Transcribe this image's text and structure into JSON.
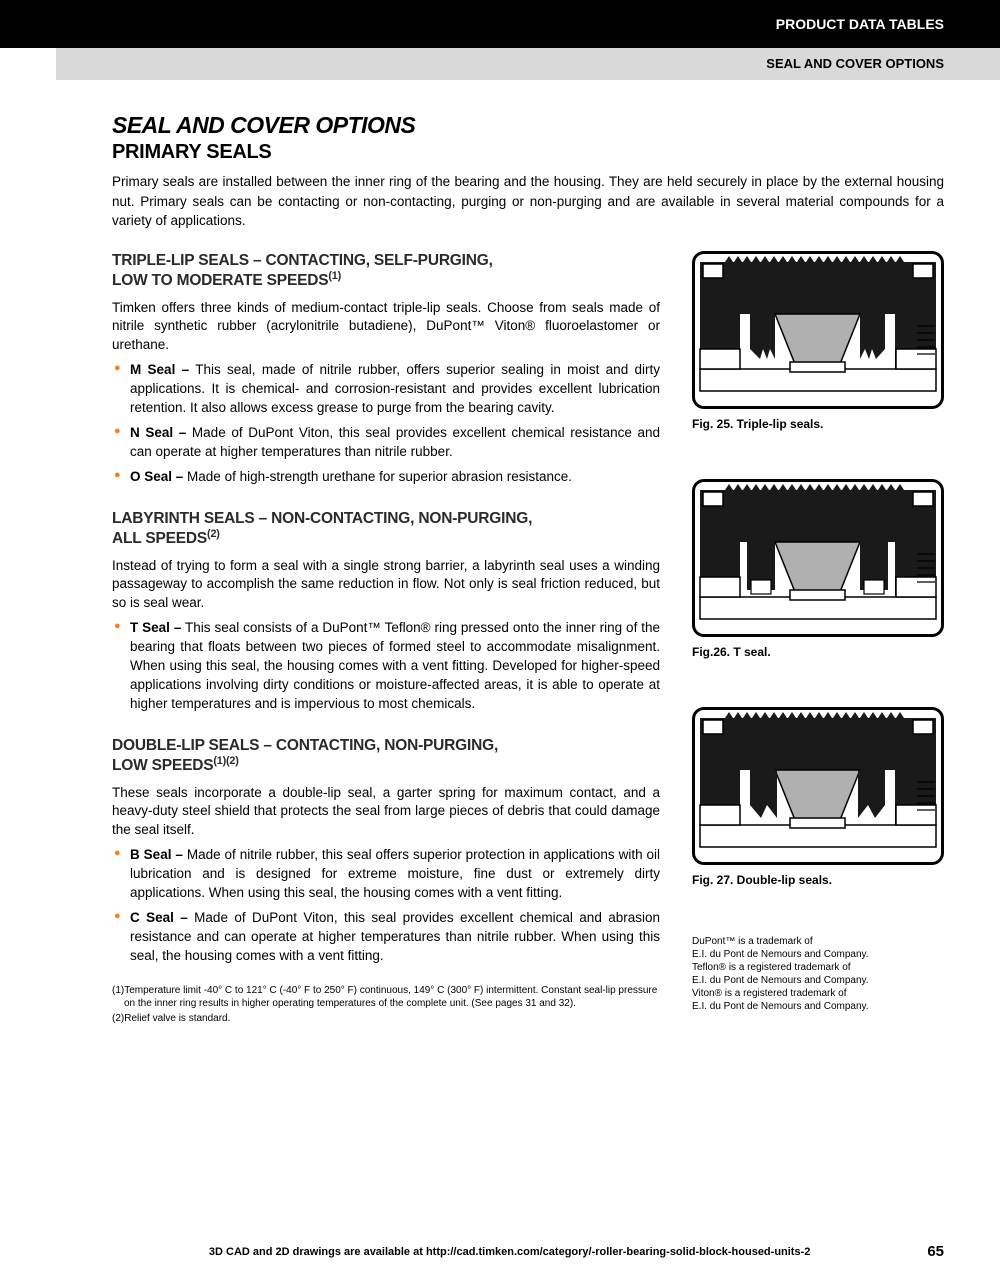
{
  "header": {
    "black_label": "PRODUCT DATA TABLES",
    "gray_label": "SEAL AND COVER OPTIONS"
  },
  "title": "SEAL AND COVER OPTIONS",
  "subtitle": "PRIMARY SEALS",
  "intro": "Primary seals are installed between the inner ring of the bearing and the housing. They are held securely in place by the external housing nut. Primary seals can be contacting or non-contacting, purging or non-purging and are available in several material compounds for a variety of applications.",
  "sections": [
    {
      "heading_line1": "TRIPLE-LIP SEALS – CONTACTING, SELF-PURGING,",
      "heading_line2": "LOW TO MODERATE SPEEDS",
      "heading_sup": "(1)",
      "text": "Timken offers three kinds of medium-contact triple-lip seals. Choose from seals made of nitrile synthetic rubber (acrylonitrile butadiene), DuPont™ Viton® fluoroelastomer or urethane.",
      "items": [
        {
          "label": "M Seal –",
          "desc": " This seal, made of nitrile rubber, offers superior sealing in moist and dirty applications. It is chemical- and corrosion-resistant and provides excellent lubrication retention. It also allows excess grease to purge from the bearing cavity."
        },
        {
          "label": "N Seal –",
          "desc": " Made of DuPont Viton, this seal provides excellent chemical resistance and can operate at higher temperatures than nitrile rubber."
        },
        {
          "label": "O Seal –",
          "desc": " Made of high-strength urethane for superior abrasion resistance."
        }
      ]
    },
    {
      "heading_line1": "LABYRINTH SEALS – NON-CONTACTING, NON-PURGING,",
      "heading_line2": "ALL SPEEDS",
      "heading_sup": "(2)",
      "text": "Instead of trying to form a seal with a single strong barrier, a labyrinth seal uses a winding passageway to accomplish the same reduction in flow. Not only is seal friction reduced, but so is seal wear.",
      "items": [
        {
          "label": "T Seal –",
          "desc": " This seal consists of a DuPont™ Teflon® ring pressed onto the inner ring of the bearing that floats between two pieces of formed steel to accommodate misalignment. When using this seal, the housing comes with a vent fitting. Developed for higher-speed applications involving dirty conditions or moisture-affected areas, it is able to operate at higher temperatures and is impervious to most chemicals."
        }
      ]
    },
    {
      "heading_line1": "DOUBLE-LIP SEALS – CONTACTING, NON-PURGING,",
      "heading_line2": "LOW SPEEDS",
      "heading_sup": "(1)(2)",
      "text": "These seals incorporate a double-lip seal, a garter spring for maximum contact, and a heavy-duty steel shield that protects the seal from large pieces of debris that could damage the seal itself.",
      "items": [
        {
          "label": "B Seal –",
          "desc": " Made of nitrile rubber, this seal offers superior protection in applications with oil lubrication and is designed for extreme moisture, fine dust or extremely dirty applications. When using this seal, the housing comes with a vent fitting."
        },
        {
          "label": "C Seal –",
          "desc": " Made of DuPont Viton, this seal provides excellent chemical and abrasion resistance and can operate at higher temperatures than nitrile rubber. When using this seal, the housing comes with a vent fitting."
        }
      ]
    }
  ],
  "figures": [
    {
      "caption": "Fig. 25. Triple-lip seals.",
      "type": "triple"
    },
    {
      "caption": "Fig.26. T seal.",
      "type": "t"
    },
    {
      "caption": "Fig. 27. Double-lip seals.",
      "type": "double"
    }
  ],
  "footnotes": [
    "(1)Temperature limit -40° C to 121° C (-40° F to 250° F) continuous, 149° C (300° F) intermittent. Constant seal-lip pressure on the inner ring results in higher operating temperatures of the complete unit. (See pages 31 and 32).",
    "(2)Relief valve is standard."
  ],
  "trademarks": [
    "DuPont™ is a trademark of",
    "E.I. du Pont de Nemours and Company.",
    "Teflon® is a registered trademark of",
    "E.I. du Pont de Nemours and Company.",
    "Viton® is a registered trademark of",
    "E.I. du Pont de Nemours and Company."
  ],
  "footer": {
    "text": "3D CAD and 2D drawings are available at http://cad.timken.com/category/-roller-bearing-solid-block-housed-units-2",
    "page": "65"
  },
  "diagram_colors": {
    "stroke": "#000000",
    "fill_solid": "#1a1a1a",
    "fill_gray": "#b0b0b0",
    "fill_light": "#e8e8e8",
    "fill_white": "#ffffff"
  }
}
